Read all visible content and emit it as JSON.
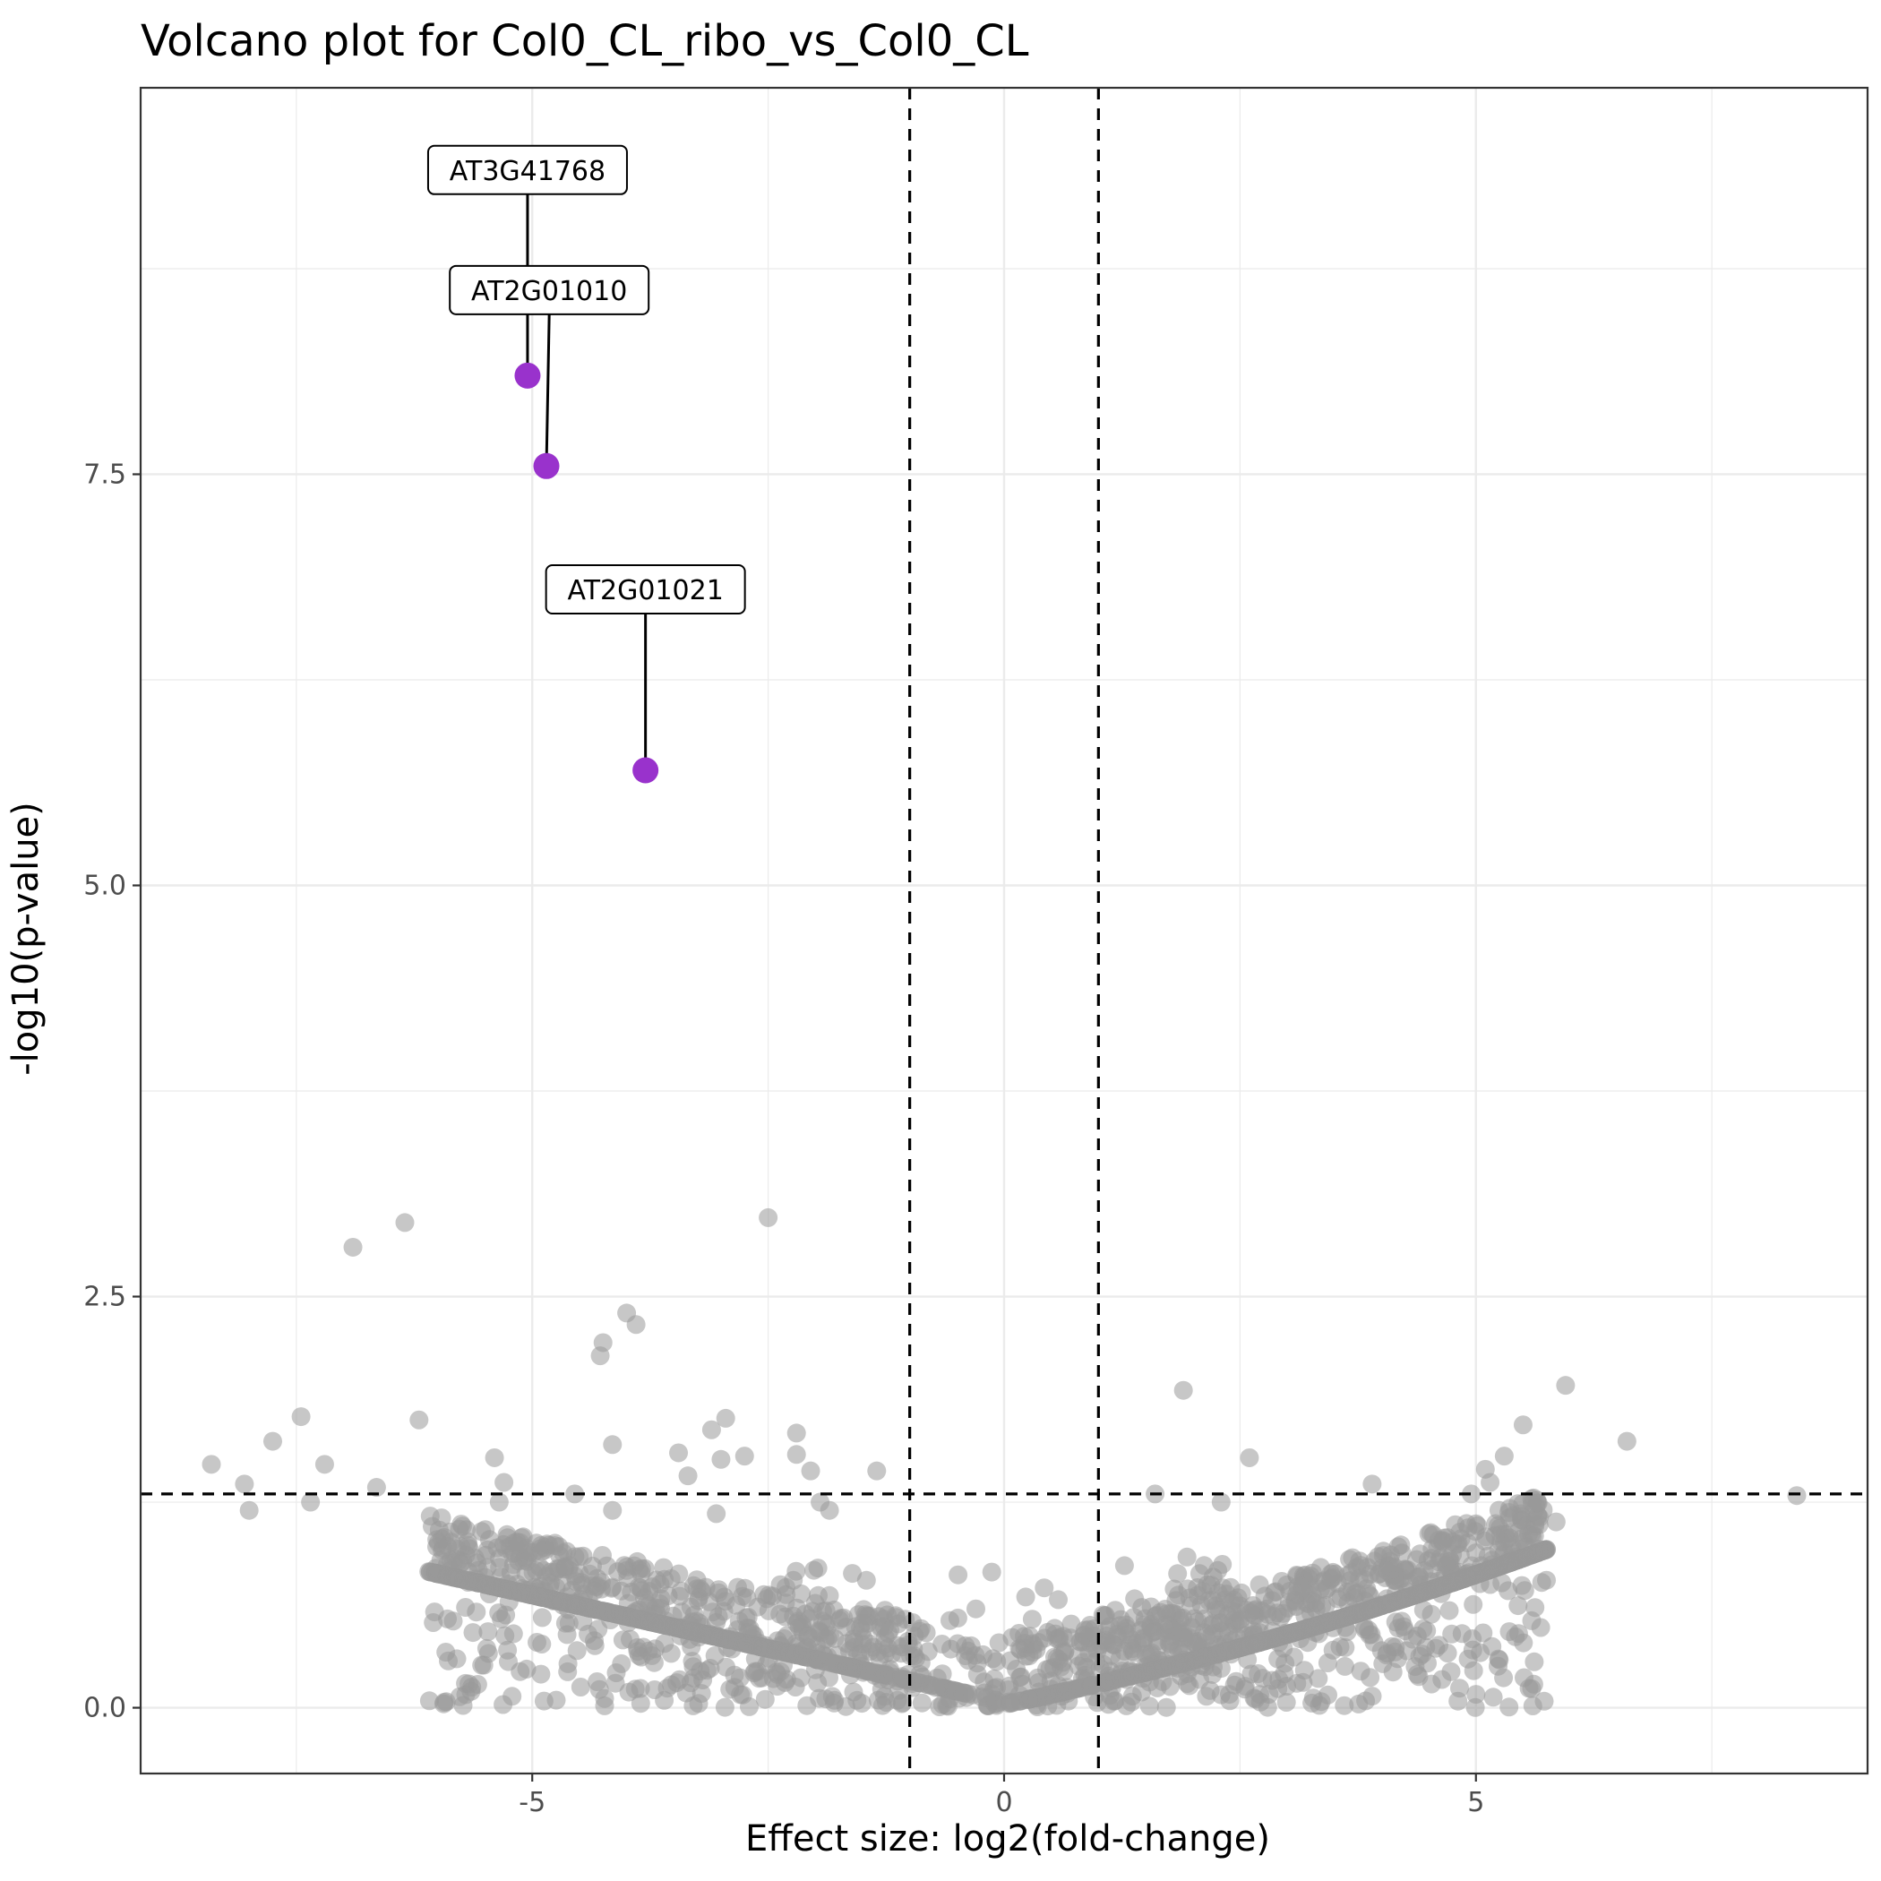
{
  "chart_data": {
    "type": "scatter",
    "title": "Volcano plot for Col0_CL_ribo_vs_Col0_CL",
    "xlabel": "Effect size: log2(fold-change)",
    "ylabel": "-log10(p-value)",
    "xlim": [
      -9.15,
      9.15
    ],
    "ylim": [
      -0.4,
      9.85
    ],
    "x_ticks": [
      -5,
      0,
      5
    ],
    "x_tick_labels": [
      "-5",
      "0",
      "5"
    ],
    "y_ticks": [
      0,
      2.5,
      5,
      7.5
    ],
    "y_tick_labels": [
      "0.0",
      "2.5",
      "5.0",
      "7.5"
    ],
    "grid": true,
    "thresholds": {
      "log2fc": [
        -1,
        1
      ],
      "neglog10p": 1.3
    },
    "colors": {
      "background_point": "#999999",
      "highlight_point": "#9932cc",
      "threshold_line": "#000000",
      "grid": "#ebebeb",
      "panel_border": "#333333"
    },
    "highlighted_genes": [
      {
        "label": "AT3G41768",
        "x": -5.05,
        "y": 8.1,
        "label_x": -5.05,
        "label_y": 9.35
      },
      {
        "label": "AT2G01010",
        "x": -4.85,
        "y": 7.55,
        "label_x": -4.82,
        "label_y": 8.62
      },
      {
        "label": "AT2G01021",
        "x": -3.8,
        "y": 5.7,
        "label_x": -3.8,
        "label_y": 6.8
      }
    ],
    "outlier_points": [
      [
        -6.35,
        2.95
      ],
      [
        -6.9,
        2.8
      ],
      [
        -2.5,
        2.98
      ],
      [
        -4.0,
        2.4
      ],
      [
        -3.9,
        2.33
      ],
      [
        -4.25,
        2.22
      ],
      [
        -4.28,
        2.14
      ],
      [
        1.9,
        1.93
      ],
      [
        5.95,
        1.96
      ],
      [
        -7.45,
        1.77
      ],
      [
        -6.2,
        1.75
      ],
      [
        -2.95,
        1.76
      ],
      [
        -3.1,
        1.69
      ],
      [
        -2.2,
        1.67
      ],
      [
        5.5,
        1.72
      ],
      [
        -7.75,
        1.62
      ],
      [
        -4.15,
        1.6
      ],
      [
        6.6,
        1.62
      ],
      [
        -8.4,
        1.48
      ],
      [
        -7.2,
        1.48
      ],
      [
        -5.4,
        1.52
      ],
      [
        -3.45,
        1.55
      ],
      [
        -3.0,
        1.51
      ],
      [
        -2.75,
        1.53
      ],
      [
        -2.2,
        1.54
      ],
      [
        -2.05,
        1.44
      ],
      [
        -1.35,
        1.44
      ],
      [
        2.6,
        1.52
      ],
      [
        5.3,
        1.53
      ],
      [
        5.1,
        1.45
      ],
      [
        -8.05,
        1.36
      ],
      [
        -6.65,
        1.34
      ],
      [
        -5.3,
        1.37
      ],
      [
        -4.55,
        1.3
      ],
      [
        -3.35,
        1.41
      ],
      [
        1.6,
        1.3
      ],
      [
        3.9,
        1.36
      ],
      [
        5.15,
        1.37
      ],
      [
        4.95,
        1.3
      ],
      [
        8.4,
        1.29
      ],
      [
        -8.0,
        1.2
      ],
      [
        -7.35,
        1.25
      ],
      [
        -5.35,
        1.25
      ],
      [
        -4.15,
        1.2
      ],
      [
        -3.05,
        1.18
      ],
      [
        -1.85,
        1.2
      ],
      [
        -1.95,
        1.25
      ],
      [
        2.3,
        1.25
      ],
      [
        4.9,
        1.12
      ],
      [
        5.85,
        1.13
      ]
    ]
  }
}
